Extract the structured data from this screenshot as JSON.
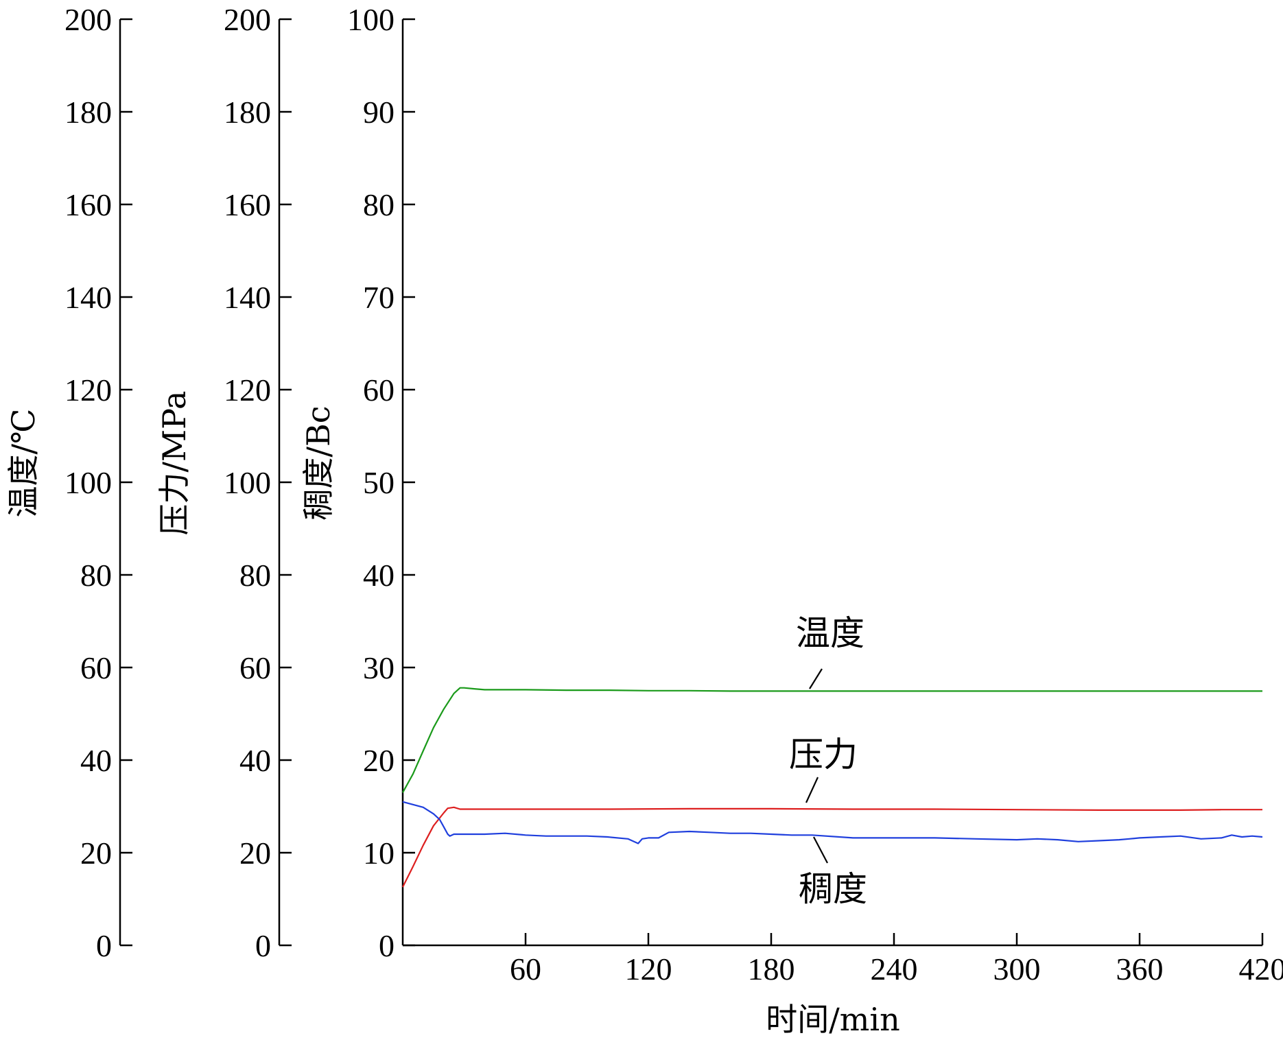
{
  "chart_data": {
    "type": "line",
    "xlabel": "时间/min",
    "x_ticks": [
      0,
      60,
      120,
      180,
      240,
      300,
      360,
      420
    ],
    "xlim": [
      0,
      420
    ],
    "y_axes": [
      {
        "id": "temp",
        "label": "温度/℃",
        "range": [
          0,
          200
        ],
        "ticks": [
          0,
          20,
          40,
          60,
          80,
          100,
          120,
          140,
          160,
          180,
          200
        ]
      },
      {
        "id": "pressure",
        "label": "压力/MPa",
        "range": [
          0,
          200
        ],
        "ticks": [
          0,
          20,
          40,
          60,
          80,
          100,
          120,
          140,
          160,
          180,
          200
        ]
      },
      {
        "id": "consistency",
        "label": "稠度/Bc",
        "range": [
          0,
          100
        ],
        "ticks": [
          0,
          10,
          20,
          30,
          40,
          50,
          60,
          70,
          80,
          90,
          100
        ]
      }
    ],
    "series": [
      {
        "name": "温度",
        "axis": "consistency",
        "color": "#1a9a1a",
        "x": [
          0,
          5,
          10,
          15,
          20,
          25,
          28,
          30,
          35,
          40,
          60,
          80,
          100,
          120,
          140,
          160,
          180,
          200,
          220,
          240,
          260,
          280,
          300,
          320,
          340,
          360,
          380,
          400,
          420
        ],
        "y": [
          16.5,
          18.5,
          21.0,
          23.5,
          25.5,
          27.2,
          27.8,
          27.8,
          27.7,
          27.6,
          27.6,
          27.55,
          27.55,
          27.5,
          27.5,
          27.45,
          27.45,
          27.45,
          27.45,
          27.45,
          27.45,
          27.45,
          27.45,
          27.45,
          27.45,
          27.45,
          27.45,
          27.45,
          27.45
        ]
      },
      {
        "name": "压力",
        "axis": "consistency",
        "color": "#dd1f1f",
        "x": [
          0,
          5,
          10,
          15,
          20,
          22,
          25,
          28,
          35,
          60,
          100,
          140,
          180,
          220,
          260,
          300,
          340,
          380,
          400,
          420
        ],
        "y": [
          6.3,
          8.5,
          10.8,
          12.9,
          14.3,
          14.8,
          14.9,
          14.7,
          14.7,
          14.7,
          14.7,
          14.75,
          14.75,
          14.7,
          14.7,
          14.65,
          14.6,
          14.6,
          14.65,
          14.65
        ],
        "style": "line"
      },
      {
        "name": "稠度",
        "axis": "consistency",
        "color": "#1f3fdd",
        "x": [
          0,
          5,
          10,
          15,
          18,
          20,
          22,
          23,
          25,
          30,
          40,
          50,
          60,
          70,
          80,
          90,
          100,
          110,
          115,
          117,
          120,
          125,
          130,
          140,
          150,
          160,
          170,
          180,
          190,
          200,
          220,
          240,
          260,
          280,
          300,
          310,
          320,
          330,
          340,
          350,
          355,
          360,
          370,
          380,
          390,
          400,
          405,
          410,
          415,
          420
        ],
        "y": [
          15.5,
          15.2,
          14.9,
          14.2,
          13.6,
          12.8,
          12.0,
          11.8,
          12.0,
          12.0,
          12.0,
          12.1,
          11.9,
          11.8,
          11.8,
          11.8,
          11.7,
          11.5,
          11.0,
          11.5,
          11.6,
          11.6,
          12.2,
          12.3,
          12.2,
          12.1,
          12.1,
          12.0,
          11.9,
          11.9,
          11.6,
          11.6,
          11.6,
          11.5,
          11.4,
          11.5,
          11.4,
          11.2,
          11.3,
          11.4,
          11.5,
          11.6,
          11.7,
          11.8,
          11.5,
          11.6,
          11.9,
          11.7,
          11.8,
          11.7
        ]
      }
    ],
    "annotations": [
      {
        "text": "温度",
        "series": "温度"
      },
      {
        "text": "压力",
        "series": "压力"
      },
      {
        "text": "稠度",
        "series": "稠度"
      }
    ],
    "grid": false,
    "legend": "none"
  }
}
